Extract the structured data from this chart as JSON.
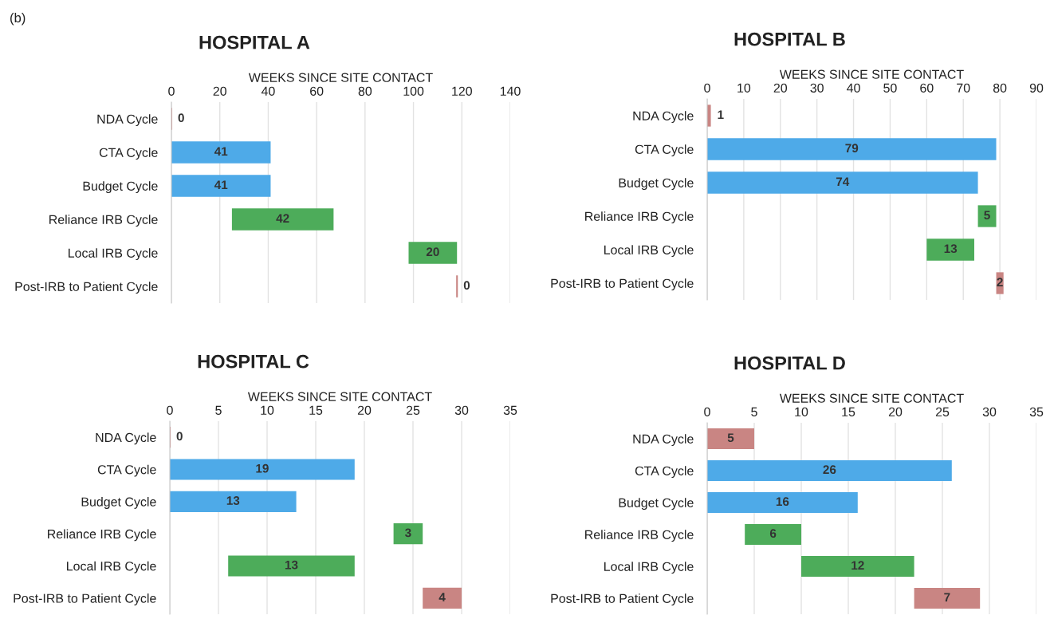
{
  "chart_data": [
    {
      "type": "bar",
      "orientation": "horizontal",
      "title": "HOSPITAL A",
      "xlabel": "WEEKS SINCE SITE CONTACT",
      "annotations": [
        "(b)"
      ],
      "categories": [
        "NDA Cycle",
        "CTA Cycle",
        "Budget Cycle",
        "Reliance IRB Cycle",
        "Local IRB Cycle",
        "Post-IRB to Patient Cycle"
      ],
      "values": [
        0,
        41,
        41,
        42,
        20,
        0
      ],
      "base": [
        0,
        0,
        0,
        25,
        98,
        118
      ],
      "colors": [
        "#c98583",
        "#4eaae8",
        "#4eaae8",
        "#4dac5a",
        "#4dac5a",
        "#c98583"
      ],
      "xlim": [
        0,
        140
      ],
      "xticks": [
        0,
        20,
        40,
        60,
        80,
        100,
        120,
        140
      ],
      "grid": "x",
      "data_labels": true
    },
    {
      "type": "bar",
      "orientation": "horizontal",
      "title": "HOSPITAL B",
      "xlabel": "WEEKS SINCE SITE CONTACT",
      "categories": [
        "NDA Cycle",
        "CTA Cycle",
        "Budget Cycle",
        "Reliance IRB Cycle",
        "Local IRB Cycle",
        "Post-IRB to Patient Cycle"
      ],
      "values": [
        1,
        79,
        74,
        5,
        13,
        2
      ],
      "base": [
        0,
        0,
        0,
        74,
        60,
        79
      ],
      "colors": [
        "#c98583",
        "#4eaae8",
        "#4eaae8",
        "#4dac5a",
        "#4dac5a",
        "#c98583"
      ],
      "xlim": [
        0,
        90
      ],
      "xticks": [
        0,
        10,
        20,
        30,
        40,
        50,
        60,
        70,
        80,
        90
      ],
      "grid": "x",
      "data_labels": true
    },
    {
      "type": "bar",
      "orientation": "horizontal",
      "title": "HOSPITAL C",
      "xlabel": "WEEKS SINCE SITE CONTACT",
      "categories": [
        "NDA Cycle",
        "CTA Cycle",
        "Budget Cycle",
        "Reliance IRB Cycle",
        "Local IRB Cycle",
        "Post-IRB to Patient Cycle"
      ],
      "values": [
        0,
        19,
        13,
        3,
        13,
        4
      ],
      "base": [
        0,
        0,
        0,
        23,
        6,
        26
      ],
      "colors": [
        "#c98583",
        "#4eaae8",
        "#4eaae8",
        "#4dac5a",
        "#4dac5a",
        "#c98583"
      ],
      "xlim": [
        0,
        35
      ],
      "xticks": [
        0,
        5,
        10,
        15,
        20,
        25,
        30,
        35
      ],
      "grid": "x",
      "data_labels": true
    },
    {
      "type": "bar",
      "orientation": "horizontal",
      "title": "HOSPITAL D",
      "xlabel": "WEEKS SINCE SITE CONTACT",
      "categories": [
        "NDA Cycle",
        "CTA Cycle",
        "Budget Cycle",
        "Reliance IRB Cycle",
        "Local IRB Cycle",
        "Post-IRB to Patient Cycle"
      ],
      "values": [
        5,
        26,
        16,
        6,
        12,
        7
      ],
      "base": [
        0,
        0,
        0,
        4,
        10,
        22
      ],
      "colors": [
        "#c98583",
        "#4eaae8",
        "#4eaae8",
        "#4dac5a",
        "#4dac5a",
        "#c98583"
      ],
      "xlim": [
        0,
        35
      ],
      "xticks": [
        0,
        5,
        10,
        15,
        20,
        25,
        30,
        35
      ],
      "grid": "x",
      "data_labels": true
    }
  ]
}
